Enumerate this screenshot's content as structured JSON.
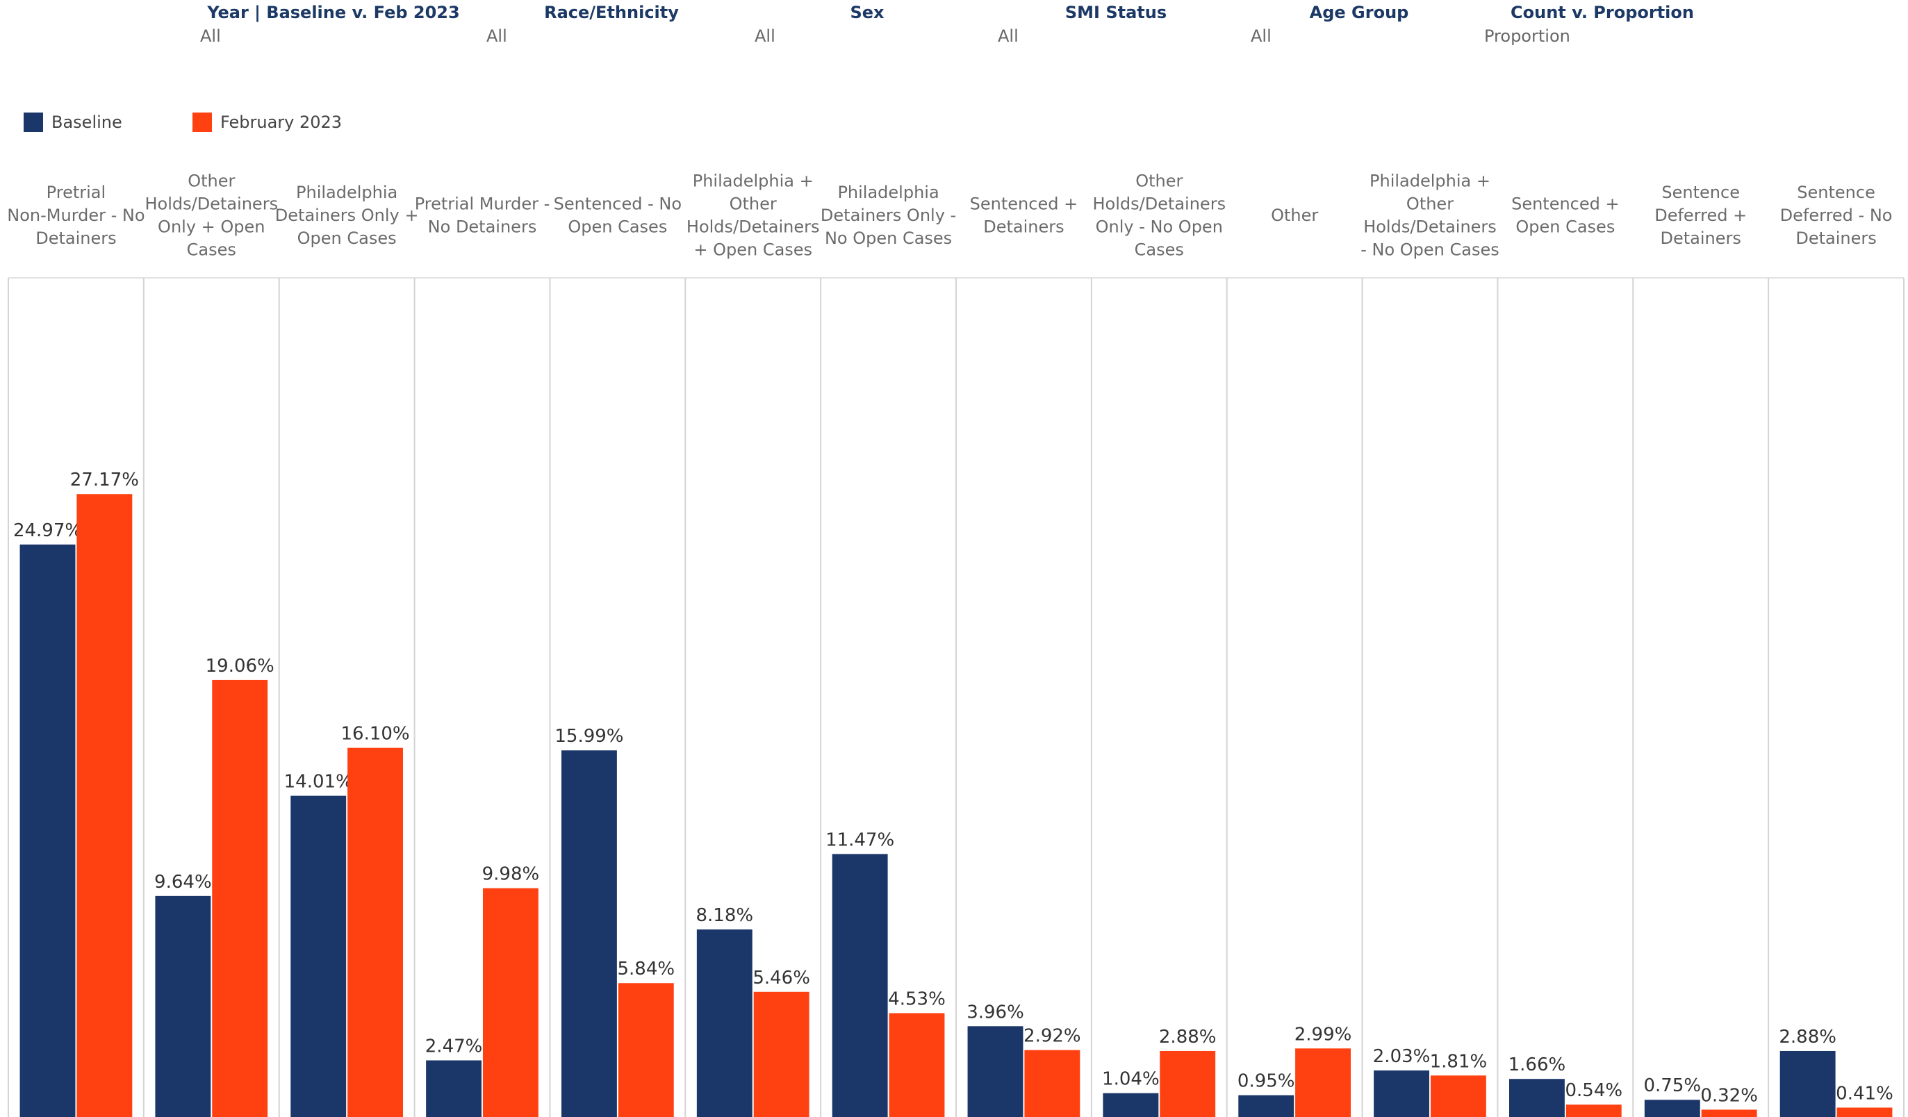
{
  "filters": [
    {
      "title": "Year | Baseline v. Feb 2023",
      "value": "All"
    },
    {
      "title": "Race/Ethnicity",
      "value": "All"
    },
    {
      "title": "Sex",
      "value": "All"
    },
    {
      "title": "SMI Status",
      "value": "All"
    },
    {
      "title": "Age Group",
      "value": "All"
    },
    {
      "title": "Count v. Proportion",
      "value": "Proportion"
    }
  ],
  "legend": [
    {
      "label": "Baseline",
      "color": "#1b3668"
    },
    {
      "label": "February 2023",
      "color": "#ff4112"
    }
  ],
  "chart_data": {
    "type": "bar",
    "categories": [
      [
        "Pretrial",
        "Non-Murder - No",
        "Detainers"
      ],
      [
        "Other",
        "Holds/Detainers",
        "Only + Open",
        "Cases"
      ],
      [
        "Philadelphia",
        "Detainers Only +",
        "Open Cases"
      ],
      [
        "Pretrial Murder -",
        "No Detainers"
      ],
      [
        "Sentenced - No",
        "Open Cases"
      ],
      [
        "Philadelphia +",
        "Other",
        "Holds/Detainers",
        "+ Open Cases"
      ],
      [
        "Philadelphia",
        "Detainers Only -",
        "No Open Cases"
      ],
      [
        "Sentenced +",
        "Detainers"
      ],
      [
        "Other",
        "Holds/Detainers",
        "Only - No Open",
        "Cases"
      ],
      [
        "Other"
      ],
      [
        "Philadelphia +",
        "Other",
        "Holds/Detainers",
        "- No Open Cases"
      ],
      [
        "Sentenced +",
        "Open Cases"
      ],
      [
        "Sentence",
        "Deferred +",
        "Detainers"
      ],
      [
        "Sentence",
        "Deferred - No",
        "Detainers"
      ]
    ],
    "series": [
      {
        "name": "Baseline",
        "color": "#1b3668",
        "values": [
          24.97,
          9.64,
          14.01,
          2.47,
          15.99,
          8.18,
          11.47,
          3.96,
          1.04,
          0.95,
          2.03,
          1.66,
          0.75,
          2.88
        ],
        "labels": [
          "24.97%",
          "9.64%",
          "14.01%",
          "2.47%",
          "15.99%",
          "8.18%",
          "11.47%",
          "3.96%",
          "1.04%",
          "0.95%",
          "2.03%",
          "1.66%",
          "0.75%",
          "2.88%"
        ]
      },
      {
        "name": "February 2023",
        "color": "#ff4112",
        "values": [
          27.17,
          19.06,
          16.1,
          9.98,
          5.84,
          5.46,
          4.53,
          2.92,
          2.88,
          2.99,
          1.81,
          0.54,
          0.32,
          0.41
        ],
        "labels": [
          "27.17%",
          "19.06%",
          "16.10%",
          "9.98%",
          "5.84%",
          "5.46%",
          "4.53%",
          "2.92%",
          "2.88%",
          "2.99%",
          "1.81%",
          "0.54%",
          "0.32%",
          "0.41%"
        ]
      }
    ],
    "ylim": [
      0,
      36.6
    ],
    "grid": false,
    "legend_position": "top-left"
  }
}
